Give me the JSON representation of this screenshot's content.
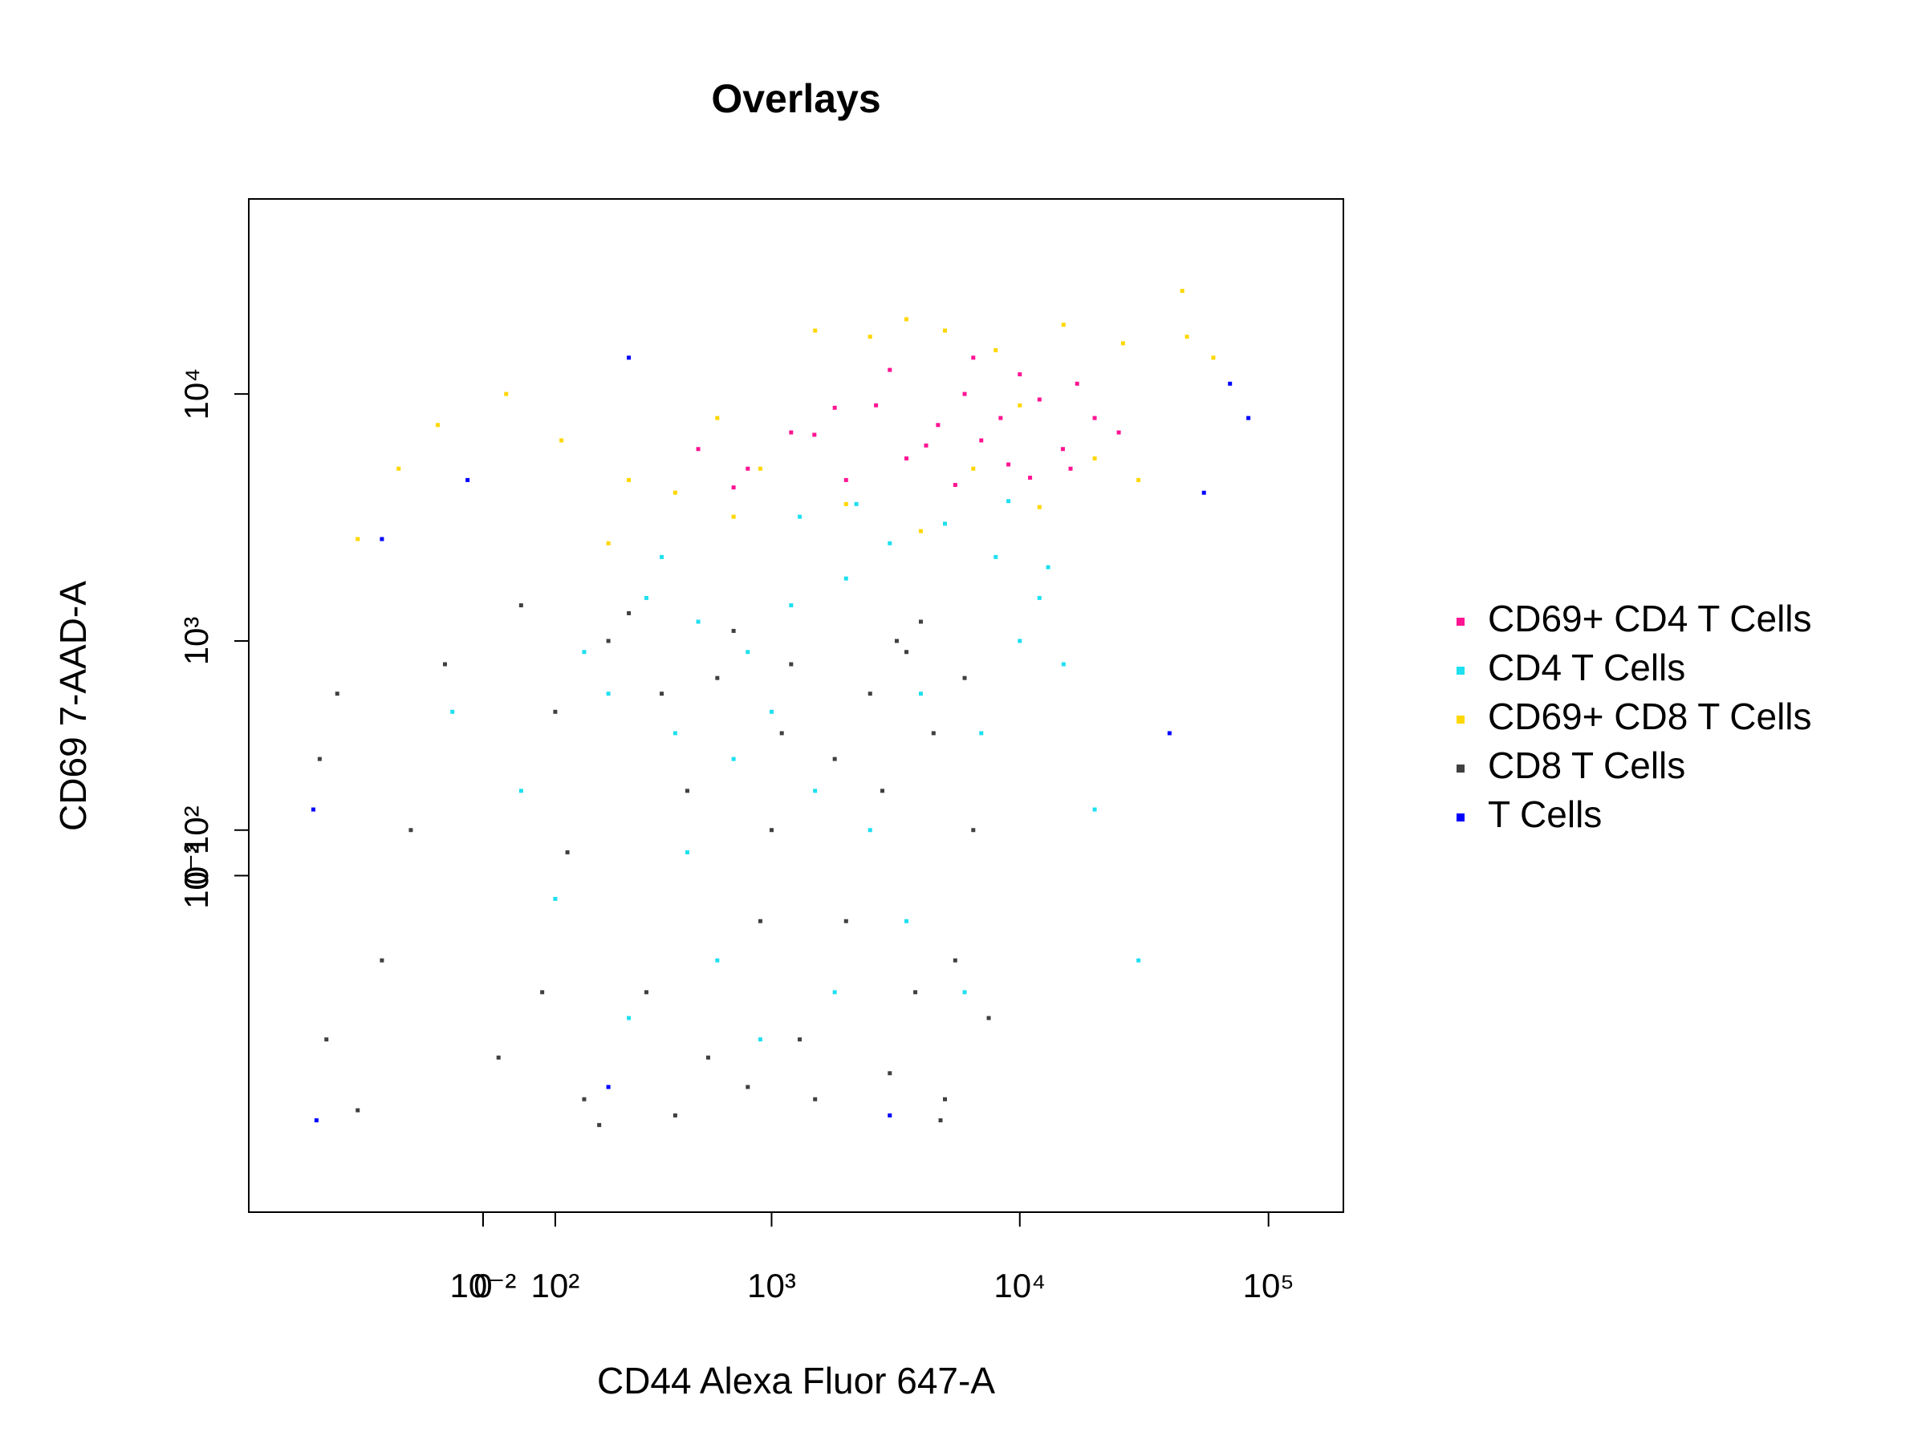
{
  "chart_data": {
    "type": "scatter",
    "title": "Overlays",
    "x_label": "CD44 Alexa Fluor 647-A",
    "y_label": "CD69 7-AAD-A",
    "scale": "biexponential",
    "legend": "right",
    "xlim": [
      -600,
      200000
    ],
    "ylim": [
      -2600,
      61000
    ],
    "xticks": [
      {
        "value": 0.01,
        "label": "10⁻²"
      },
      0,
      {
        "value": 100,
        "label": "10²"
      },
      {
        "value": 1000,
        "label": "10³"
      },
      {
        "value": 10000,
        "label": "10⁴"
      },
      {
        "value": 100000,
        "label": "10⁵"
      }
    ],
    "yticks": [
      {
        "value": 0.001,
        "label": "10⁻³"
      },
      {
        "value": 0.01,
        "label": "10⁻²"
      },
      0,
      {
        "value": 100,
        "label": "10²"
      },
      {
        "value": 1000,
        "label": "10³"
      },
      {
        "value": 10000,
        "label": "10⁴"
      }
    ],
    "series": [
      {
        "name": "CD69+ CD4 T Cells",
        "color": "#ff1493",
        "x": [
          1490,
          2640,
          4690,
          8370,
          14900,
          3500,
          6000,
          10000,
          20000,
          800,
          1200,
          2000,
          5500,
          9000,
          12000,
          17000,
          25000,
          700,
          3000,
          4200,
          7000,
          11000,
          500,
          1800,
          16000,
          6500
        ],
        "y": [
          6850,
          9000,
          7500,
          8000,
          6000,
          5500,
          10000,
          12000,
          8000,
          5000,
          7000,
          4500,
          4300,
          5200,
          9500,
          11000,
          7000,
          4200,
          12500,
          6200,
          6500,
          4600,
          6000,
          8800,
          5000,
          14000
        ]
      },
      {
        "name": "CD4 T Cells",
        "color": "#1ee0f0",
        "x": [
          300,
          500,
          800,
          1200,
          2000,
          3000,
          5000,
          8000,
          12000,
          15000,
          200,
          400,
          700,
          1000,
          1500,
          2500,
          3500,
          6000,
          100,
          50,
          150,
          250,
          600,
          900,
          1800,
          4000,
          7000,
          10000,
          20000,
          30000,
          350,
          1300,
          2200,
          9000,
          13000,
          -40,
          450
        ],
        "y": [
          1500,
          1200,
          900,
          1400,
          1800,
          2500,
          3000,
          2200,
          1500,
          800,
          600,
          400,
          300,
          500,
          200,
          100,
          -100,
          -300,
          -50,
          200,
          900,
          -400,
          -200,
          -500,
          -300,
          600,
          400,
          1000,
          150,
          -200,
          2200,
          3200,
          3600,
          3700,
          2000,
          500,
          50
        ]
      },
      {
        "name": "CD69+ CD8 T Cells",
        "color": "#ffd700",
        "x": [
          -200,
          -120,
          -60,
          30,
          110,
          250,
          400,
          600,
          900,
          1500,
          2500,
          3500,
          5000,
          8000,
          15000,
          26000,
          47000,
          60000,
          30000,
          20000,
          12000,
          4000,
          200,
          700,
          2000,
          45000,
          10000,
          6500
        ],
        "y": [
          2600,
          5000,
          7500,
          10000,
          6500,
          4500,
          4000,
          8000,
          5000,
          18000,
          17000,
          20000,
          18000,
          15000,
          19000,
          16000,
          17000,
          14000,
          4500,
          5500,
          3500,
          2800,
          2500,
          3200,
          3600,
          26000,
          9000,
          5000
        ]
      },
      {
        "name": "CD8 T Cells",
        "color": "#404040",
        "x": [
          -300,
          -150,
          -50,
          20,
          100,
          200,
          300,
          450,
          600,
          800,
          1000,
          1300,
          1800,
          2500,
          3500,
          4500,
          5500,
          6500,
          7500,
          3000,
          150,
          -200,
          -100,
          50,
          250,
          700,
          1200,
          2000,
          4000,
          5000,
          -250,
          80,
          350,
          900,
          1500,
          2800,
          3800,
          6000,
          400,
          -280,
          120,
          550,
          1100,
          3200,
          4800,
          180
        ],
        "y": [
          300,
          -200,
          800,
          -600,
          500,
          1000,
          -300,
          200,
          700,
          -800,
          100,
          -500,
          300,
          600,
          900,
          400,
          -200,
          100,
          -400,
          -700,
          -900,
          -1000,
          100,
          1400,
          1300,
          1100,
          800,
          -100,
          1200,
          -900,
          600,
          -300,
          600,
          -100,
          -900,
          200,
          -300,
          700,
          -1050,
          -500,
          50,
          -600,
          400,
          1000,
          -1100,
          -1150
        ]
      },
      {
        "name": "T Cells",
        "color": "#0000ff",
        "x": [
          -310,
          -320,
          -150,
          -20,
          250,
          55000,
          70000,
          83000,
          40000,
          3000,
          200
        ],
        "y": [
          -1100,
          150,
          2600,
          4500,
          14000,
          4000,
          11000,
          8000,
          400,
          -1050,
          -800
        ]
      }
    ]
  }
}
